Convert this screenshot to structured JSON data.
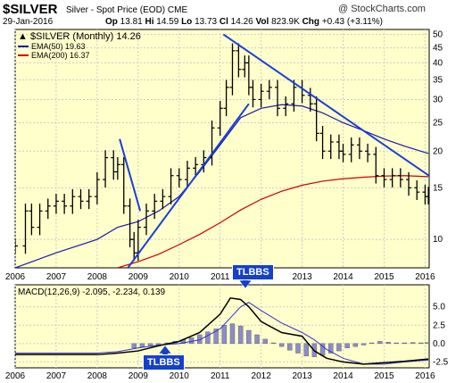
{
  "header": {
    "symbol": "$SILVER",
    "subtitle": "Silver - Spot Price (EOD)",
    "exchange": "CME",
    "source": "@ StockCharts.com",
    "date": "29-Jan-2016",
    "open_label": "Op",
    "open": "13.81",
    "high_label": "Hi",
    "high": "14.59",
    "low_label": "Lo",
    "low": "13.73",
    "close_label": "Cl",
    "close": "14.26",
    "vol_label": "Vol",
    "vol": "823.9K",
    "chg_label": "Chg",
    "chg": "+0.43 (+3.11%)"
  },
  "callouts": {
    "top": "TLBBS",
    "bottom": "TLBBS"
  },
  "colors": {
    "panel_bg": "#ffffcc",
    "price": "#000000",
    "ema50": "#1a1aa8",
    "ema200": "#cc0000",
    "trendline": "#1a3fd6",
    "macd_line": "#000000",
    "signal_line": "#3333cc",
    "histogram": "#8c8cc8",
    "histogram_edge": "#555555",
    "callout_bg": "#1540c8"
  },
  "chart_data": [
    {
      "type": "line",
      "title": "$SILVER (Monthly) 14.26",
      "scale": "log",
      "ylim": [
        8,
        52
      ],
      "y_ticks": [
        10,
        15,
        20,
        25,
        30,
        35,
        40,
        45,
        50
      ],
      "x_ticks": [
        "2006",
        "2007",
        "2008",
        "2009",
        "2010",
        "2011",
        "2012",
        "2013",
        "2014",
        "2015",
        "2016"
      ],
      "xlim": [
        2006.0,
        2016.1
      ],
      "grid": true,
      "legend": "top-left",
      "legend_entries": [
        "$SILVER (Monthly) 14.26",
        "EMA(50) 19.63",
        "EMA(200) 16.37"
      ],
      "series": [
        {
          "name": "$SILVER (Monthly) 14.26",
          "kind": "ohlc",
          "x": [
            2006.0,
            2006.25,
            2006.4,
            2006.6,
            2006.8,
            2007.0,
            2007.2,
            2007.4,
            2007.6,
            2007.8,
            2008.0,
            2008.2,
            2008.4,
            2008.5,
            2008.65,
            2008.8,
            2008.9,
            2009.0,
            2009.2,
            2009.4,
            2009.6,
            2009.8,
            2010.0,
            2010.2,
            2010.4,
            2010.6,
            2010.8,
            2011.0,
            2011.15,
            2011.3,
            2011.45,
            2011.6,
            2011.7,
            2011.8,
            2012.0,
            2012.2,
            2012.4,
            2012.6,
            2012.8,
            2013.0,
            2013.2,
            2013.35,
            2013.5,
            2013.7,
            2013.9,
            2014.0,
            2014.2,
            2014.4,
            2014.6,
            2014.8,
            2015.0,
            2015.2,
            2015.4,
            2015.6,
            2015.8,
            2016.0,
            2016.08
          ],
          "y": [
            9.5,
            12.5,
            11.0,
            12.5,
            13.0,
            13.5,
            13.0,
            14.0,
            13.5,
            14.0,
            16.0,
            19.0,
            17.0,
            18.0,
            13.0,
            10.0,
            9.0,
            11.0,
            12.5,
            13.5,
            14.0,
            16.5,
            16.0,
            17.5,
            18.0,
            19.0,
            24.0,
            28.0,
            33.0,
            44.0,
            38.0,
            40.0,
            33.0,
            30.0,
            32.0,
            33.0,
            28.0,
            29.0,
            33.0,
            31.0,
            29.0,
            23.0,
            20.0,
            21.5,
            20.0,
            19.5,
            21.0,
            20.0,
            19.5,
            16.5,
            16.0,
            16.5,
            16.0,
            15.0,
            14.5,
            14.0,
            14.26
          ]
        },
        {
          "name": "EMA(50) 19.63",
          "x": [
            2006.0,
            2007.0,
            2008.0,
            2008.5,
            2009.0,
            2009.5,
            2010.0,
            2010.5,
            2011.0,
            2011.5,
            2012.0,
            2012.5,
            2013.0,
            2013.5,
            2014.0,
            2014.5,
            2015.0,
            2015.5,
            2016.08
          ],
          "y": [
            8.0,
            9.0,
            10.0,
            11.0,
            11.5,
            12.5,
            14.0,
            17.0,
            21.0,
            26.0,
            28.0,
            28.8,
            28.5,
            27.0,
            25.0,
            23.5,
            22.0,
            20.8,
            19.63
          ]
        },
        {
          "name": "EMA(200) 16.37",
          "x": [
            2008.5,
            2009.0,
            2009.5,
            2010.0,
            2010.5,
            2011.0,
            2011.5,
            2012.0,
            2012.5,
            2013.0,
            2013.5,
            2014.0,
            2014.5,
            2015.0,
            2015.5,
            2016.08
          ],
          "y": [
            8.0,
            8.4,
            8.9,
            9.6,
            10.4,
            11.4,
            12.6,
            13.7,
            14.6,
            15.3,
            15.8,
            16.1,
            16.3,
            16.45,
            16.5,
            16.37
          ]
        }
      ],
      "trendlines": [
        {
          "x": [
            2008.55,
            2009.05
          ],
          "y": [
            22.0,
            12.5
          ]
        },
        {
          "x": [
            2008.75,
            2011.7
          ],
          "y": [
            8.0,
            29.0
          ]
        },
        {
          "x": [
            2011.08,
            2016.12
          ],
          "y": [
            50.0,
            16.4
          ]
        }
      ]
    },
    {
      "type": "line",
      "title": "MACD(12,26,9) -2.095, -2.234, 0.139",
      "ylim": [
        -3.3,
        8.0
      ],
      "y_ticks": [
        -2.5,
        0.0,
        2.5,
        5.0
      ],
      "x_ticks": [
        "2006",
        "2007",
        "2008",
        "2009",
        "2010",
        "2011",
        "2012",
        "2013",
        "2014",
        "2015",
        "2016"
      ],
      "xlim": [
        2006.0,
        2016.1
      ],
      "grid": true,
      "series": [
        {
          "name": "MACD(12,26,9) -2.095",
          "x": [
            2006.0,
            2007.0,
            2008.0,
            2008.5,
            2009.0,
            2009.5,
            2010.0,
            2010.5,
            2011.0,
            2011.25,
            2011.5,
            2011.7,
            2012.0,
            2012.5,
            2013.0,
            2013.3,
            2013.6,
            2014.0,
            2014.5,
            2015.0,
            2015.5,
            2016.08
          ],
          "y": [
            -1.5,
            -1.5,
            -1.5,
            -1.3,
            -1.0,
            -0.3,
            0.3,
            1.5,
            4.0,
            6.2,
            6.0,
            5.0,
            3.0,
            1.5,
            1.0,
            -1.0,
            -2.0,
            -2.5,
            -2.8,
            -2.6,
            -2.4,
            -2.095
          ]
        },
        {
          "name": "-2.234",
          "x": [
            2006.0,
            2007.0,
            2008.0,
            2008.5,
            2009.0,
            2009.5,
            2010.0,
            2010.5,
            2011.0,
            2011.25,
            2011.5,
            2011.7,
            2012.0,
            2012.5,
            2013.0,
            2013.3,
            2013.6,
            2014.0,
            2014.5,
            2015.0,
            2015.5,
            2016.08
          ],
          "y": [
            -1.3,
            -1.3,
            -1.3,
            -1.1,
            -0.6,
            -0.2,
            0.0,
            0.5,
            2.0,
            3.5,
            5.0,
            5.6,
            4.5,
            2.8,
            1.5,
            0.5,
            -0.8,
            -2.0,
            -2.8,
            -2.8,
            -2.5,
            -2.234
          ]
        },
        {
          "name": "0.139",
          "kind": "histogram",
          "x": [
            2008.9,
            2009.1,
            2009.3,
            2009.5,
            2009.7,
            2009.9,
            2010.1,
            2010.3,
            2010.5,
            2010.7,
            2010.9,
            2011.1,
            2011.3,
            2011.5,
            2011.7,
            2011.9,
            2012.1,
            2012.3,
            2012.5,
            2012.7,
            2012.9,
            2013.1,
            2013.3,
            2013.5,
            2013.7,
            2013.9,
            2014.1,
            2014.3,
            2014.5,
            2014.7,
            2014.9,
            2015.1,
            2015.3,
            2015.5,
            2015.7,
            2015.9,
            2016.05
          ],
          "y": [
            -0.6,
            -0.5,
            -0.4,
            -0.3,
            0.1,
            0.3,
            0.5,
            0.8,
            1.2,
            1.6,
            2.0,
            2.5,
            2.7,
            2.4,
            1.8,
            1.2,
            0.6,
            0.1,
            -0.4,
            -0.9,
            -1.3,
            -1.7,
            -1.8,
            -1.6,
            -1.3,
            -1.0,
            -0.6,
            -0.4,
            -0.2,
            0.1,
            0.3,
            0.2,
            0.1,
            0.1,
            0.15,
            0.1,
            0.139
          ]
        }
      ]
    }
  ]
}
